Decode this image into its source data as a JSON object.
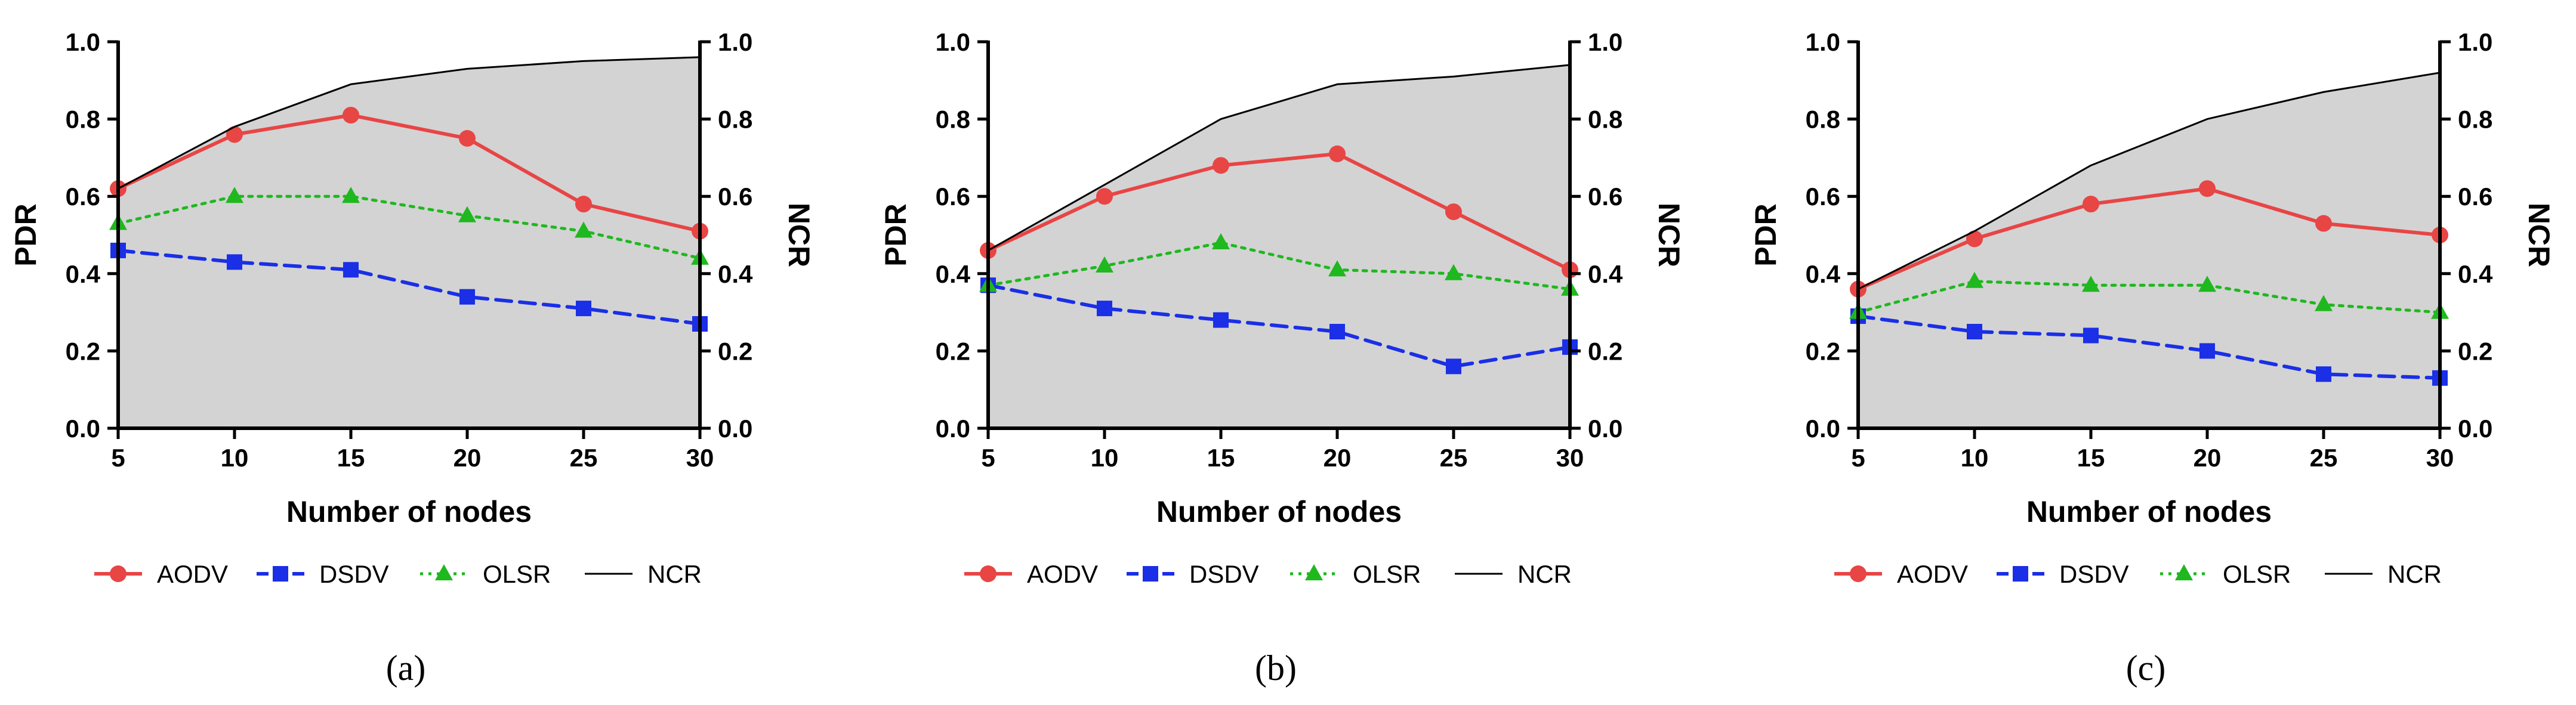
{
  "chart_data": [
    {
      "type": "line",
      "panel_label": "(a)",
      "x": [
        5,
        10,
        15,
        20,
        25,
        30
      ],
      "xlabel": "Number of nodes",
      "ylabel": "PDR",
      "y2label": "NCR",
      "xlim": [
        5,
        30
      ],
      "ylim": [
        0,
        1
      ],
      "y2lim": [
        0,
        1
      ],
      "xticks": [
        "5",
        "10",
        "15",
        "20",
        "25",
        "30"
      ],
      "yticks": [
        "0.0",
        "0.2",
        "0.4",
        "0.6",
        "0.8",
        "1.0"
      ],
      "series": [
        {
          "name": "AODV",
          "values": [
            0.62,
            0.76,
            0.81,
            0.75,
            0.58,
            0.51
          ]
        },
        {
          "name": "DSDV",
          "values": [
            0.46,
            0.43,
            0.41,
            0.34,
            0.31,
            0.27
          ]
        },
        {
          "name": "OLSR",
          "values": [
            0.53,
            0.6,
            0.6,
            0.55,
            0.51,
            0.44
          ]
        },
        {
          "name": "NCR",
          "values": [
            0.62,
            0.78,
            0.89,
            0.93,
            0.95,
            0.96
          ]
        }
      ]
    },
    {
      "type": "line",
      "panel_label": "(b)",
      "x": [
        5,
        10,
        15,
        20,
        25,
        30
      ],
      "xlabel": "Number of nodes",
      "ylabel": "PDR",
      "y2label": "NCR",
      "xlim": [
        5,
        30
      ],
      "ylim": [
        0,
        1
      ],
      "y2lim": [
        0,
        1
      ],
      "xticks": [
        "5",
        "10",
        "15",
        "20",
        "25",
        "30"
      ],
      "yticks": [
        "0.0",
        "0.2",
        "0.4",
        "0.6",
        "0.8",
        "1.0"
      ],
      "series": [
        {
          "name": "AODV",
          "values": [
            0.46,
            0.6,
            0.68,
            0.71,
            0.56,
            0.41
          ]
        },
        {
          "name": "DSDV",
          "values": [
            0.37,
            0.31,
            0.28,
            0.25,
            0.16,
            0.21
          ]
        },
        {
          "name": "OLSR",
          "values": [
            0.37,
            0.42,
            0.48,
            0.41,
            0.4,
            0.36
          ]
        },
        {
          "name": "NCR",
          "values": [
            0.46,
            0.63,
            0.8,
            0.89,
            0.91,
            0.94
          ]
        }
      ]
    },
    {
      "type": "line",
      "panel_label": "(c)",
      "x": [
        5,
        10,
        15,
        20,
        25,
        30
      ],
      "xlabel": "Number of nodes",
      "ylabel": "PDR",
      "y2label": "NCR",
      "xlim": [
        5,
        30
      ],
      "ylim": [
        0,
        1
      ],
      "y2lim": [
        0,
        1
      ],
      "xticks": [
        "5",
        "10",
        "15",
        "20",
        "25",
        "30"
      ],
      "yticks": [
        "0.0",
        "0.2",
        "0.4",
        "0.6",
        "0.8",
        "1.0"
      ],
      "series": [
        {
          "name": "AODV",
          "values": [
            0.36,
            0.49,
            0.58,
            0.62,
            0.53,
            0.5
          ]
        },
        {
          "name": "DSDV",
          "values": [
            0.29,
            0.25,
            0.24,
            0.2,
            0.14,
            0.13
          ]
        },
        {
          "name": "OLSR",
          "values": [
            0.3,
            0.38,
            0.37,
            0.37,
            0.32,
            0.3
          ]
        },
        {
          "name": "NCR",
          "values": [
            0.36,
            0.51,
            0.68,
            0.8,
            0.87,
            0.92
          ]
        }
      ]
    }
  ],
  "style": {
    "colors": {
      "AODV": "#e84545",
      "DSDV": "#1a2fe6",
      "OLSR": "#1fb81f",
      "NCR": "#000000",
      "area": "#d3d3d3"
    },
    "markers": {
      "AODV": "circle-icon",
      "DSDV": "square-icon",
      "OLSR": "triangle-icon",
      "NCR": "none"
    }
  }
}
